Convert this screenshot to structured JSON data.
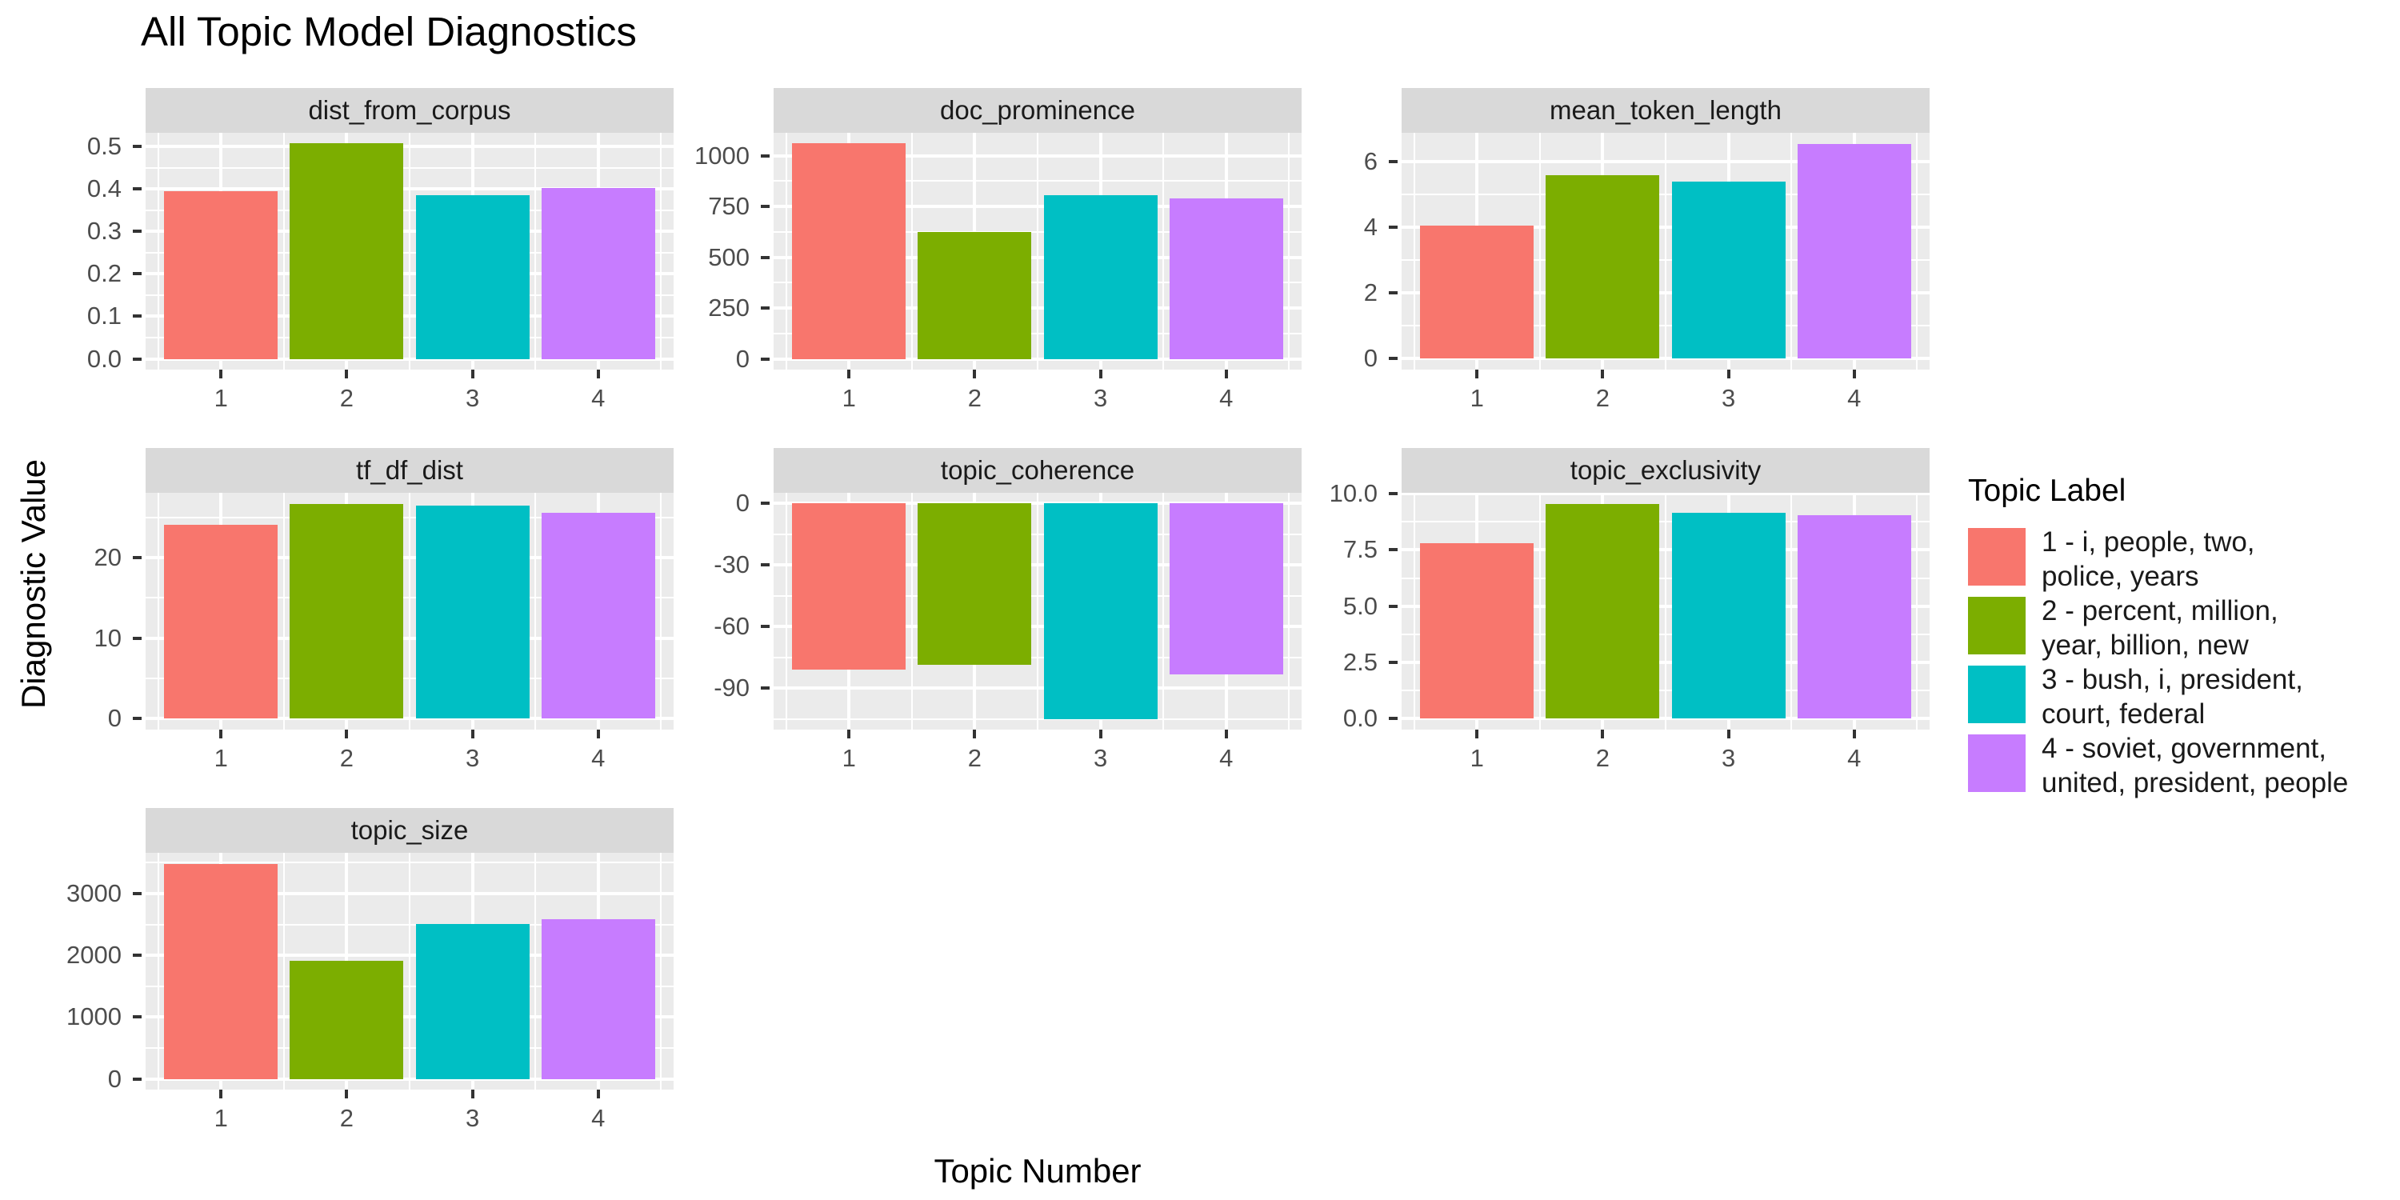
{
  "title": "All Topic Model Diagnostics",
  "x_axis_title": "Topic Number",
  "y_axis_title": "Diagnostic Value",
  "legend": {
    "title": "Topic Label",
    "items": [
      {
        "label": "1 - i, people, two, police, years",
        "label_lines": [
          "1 - i, people, two,",
          "police, years"
        ],
        "color": "#F8766D"
      },
      {
        "label": "2 - percent, million, year, billion, new",
        "label_lines": [
          "2 - percent, million,",
          "year, billion, new"
        ],
        "color": "#7CAE00"
      },
      {
        "label": "3 - bush, i, president, court, federal",
        "label_lines": [
          "3 - bush, i, president,",
          "court, federal"
        ],
        "color": "#00BFC4"
      },
      {
        "label": "4 - soviet, government, united, president, people",
        "label_lines": [
          "4 - soviet, government,",
          "united, president, people"
        ],
        "color": "#C77CFF"
      }
    ]
  },
  "colors": {
    "strip_background": "#D9D9D9",
    "panel_background": "#EBEBEB",
    "gridline": "#FFFFFF",
    "tick_text": "#4D4D4D",
    "strip_text": "#1A1A1A",
    "tick_mark": "#333333"
  },
  "chart_data": {
    "type": "bar",
    "faceted": true,
    "facet_layout": "3 columns, row-major, 7 facets",
    "categories": [
      "1",
      "2",
      "3",
      "4"
    ],
    "series_colors": [
      "#F8766D",
      "#7CAE00",
      "#00BFC4",
      "#C77CFF"
    ],
    "xlabel": "Topic Number",
    "ylabel": "Diagnostic Value",
    "grid": "major and minor white gridlines on gray panel",
    "legend_position": "right",
    "facets": [
      {
        "name": "dist_from_corpus",
        "values": [
          0.394,
          0.507,
          0.385,
          0.402
        ],
        "ticks": [
          0.0,
          0.1,
          0.2,
          0.3,
          0.4,
          0.5
        ],
        "tick_labels": [
          "0.0",
          "0.1",
          "0.2",
          "0.3",
          "0.4",
          "0.5"
        ],
        "ylim": [
          -0.0254,
          0.5324
        ]
      },
      {
        "name": "doc_prominence",
        "values": [
          1060,
          625,
          805,
          790
        ],
        "ticks": [
          0,
          250,
          500,
          750,
          1000
        ],
        "tick_labels": [
          "0",
          "250",
          "500",
          "750",
          "1000"
        ],
        "ylim": [
          -53,
          1113
        ]
      },
      {
        "name": "mean_token_length",
        "values": [
          4.05,
          5.6,
          5.4,
          6.55
        ],
        "ticks": [
          0,
          2,
          4,
          6
        ],
        "tick_labels": [
          "0",
          "2",
          "4",
          "6"
        ],
        "ylim": [
          -0.33,
          6.89
        ]
      },
      {
        "name": "tf_df_dist",
        "values": [
          24.1,
          26.7,
          26.5,
          25.6
        ],
        "ticks": [
          0,
          10,
          20
        ],
        "tick_labels": [
          "0",
          "10",
          "20"
        ],
        "ylim": [
          -1.34,
          28.04
        ]
      },
      {
        "name": "topic_coherence",
        "values": [
          -81,
          -78.5,
          -105,
          -83.5
        ],
        "ticks": [
          -90,
          -60,
          -30,
          0
        ],
        "tick_labels": [
          "-90",
          "-60",
          "-30",
          "0"
        ],
        "ylim": [
          -110.25,
          5.25
        ]
      },
      {
        "name": "topic_exclusivity",
        "values": [
          7.8,
          9.55,
          9.15,
          9.05
        ],
        "ticks": [
          0,
          2.5,
          5.0,
          7.5,
          10.0
        ],
        "tick_labels": [
          "0.0",
          "2.5",
          "5.0",
          "7.5",
          "10.0"
        ],
        "ylim": [
          -0.48,
          10.04
        ]
      },
      {
        "name": "topic_size",
        "values": [
          3485,
          1905,
          2510,
          2590
        ],
        "ticks": [
          0,
          1000,
          2000,
          3000
        ],
        "tick_labels": [
          "0",
          "1000",
          "2000",
          "3000"
        ],
        "ylim": [
          -174.3,
          3660
        ]
      }
    ]
  }
}
